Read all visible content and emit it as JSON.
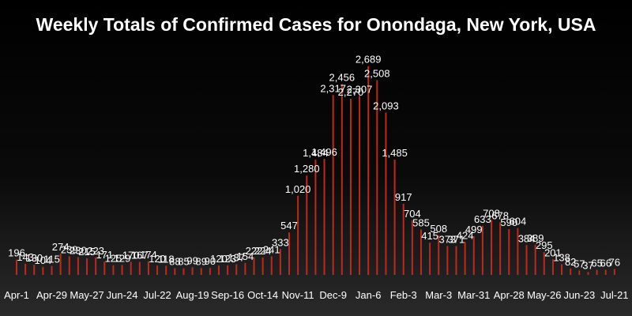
{
  "chart_data": {
    "type": "bar",
    "title": "Weekly Totals of Confirmed Cases for Onondaga, New York, USA",
    "xlabel": "",
    "ylabel": "",
    "ylim": [
      0,
      2900
    ],
    "bar_color": "#c0281c",
    "label_color": "#ffffff",
    "tick_labels": [
      {
        "index": 0,
        "label": "Apr-1"
      },
      {
        "index": 4,
        "label": "Apr-29"
      },
      {
        "index": 8,
        "label": "May-27"
      },
      {
        "index": 12,
        "label": "Jun-24"
      },
      {
        "index": 16,
        "label": "Jul-22"
      },
      {
        "index": 20,
        "label": "Aug-19"
      },
      {
        "index": 24,
        "label": "Sep-16"
      },
      {
        "index": 28,
        "label": "Oct-14"
      },
      {
        "index": 32,
        "label": "Nov-11"
      },
      {
        "index": 36,
        "label": "Dec-9"
      },
      {
        "index": 40,
        "label": "Jan-6"
      },
      {
        "index": 44,
        "label": "Feb-3"
      },
      {
        "index": 48,
        "label": "Mar-3"
      },
      {
        "index": 52,
        "label": "Mar-31"
      },
      {
        "index": 56,
        "label": "Apr-28"
      },
      {
        "index": 60,
        "label": "May-26"
      },
      {
        "index": 64,
        "label": "Jun-23"
      },
      {
        "index": 68,
        "label": "Jul-21"
      }
    ],
    "values": [
      196,
      143,
      130,
      104,
      115,
      274,
      239,
      230,
      215,
      223,
      171,
      125,
      129,
      170,
      167,
      174,
      120,
      118,
      88,
      85,
      99,
      89,
      90,
      120,
      123,
      137,
      154,
      222,
      224,
      241,
      333,
      547,
      1020,
      1280,
      1484,
      1496,
      2317,
      2456,
      2270,
      2307,
      2689,
      2508,
      2093,
      1485,
      917,
      704,
      585,
      415,
      508,
      373,
      371,
      424,
      499,
      633,
      708,
      678,
      590,
      604,
      384,
      389,
      295,
      201,
      138,
      82,
      57,
      37,
      65,
      66,
      76
    ]
  }
}
